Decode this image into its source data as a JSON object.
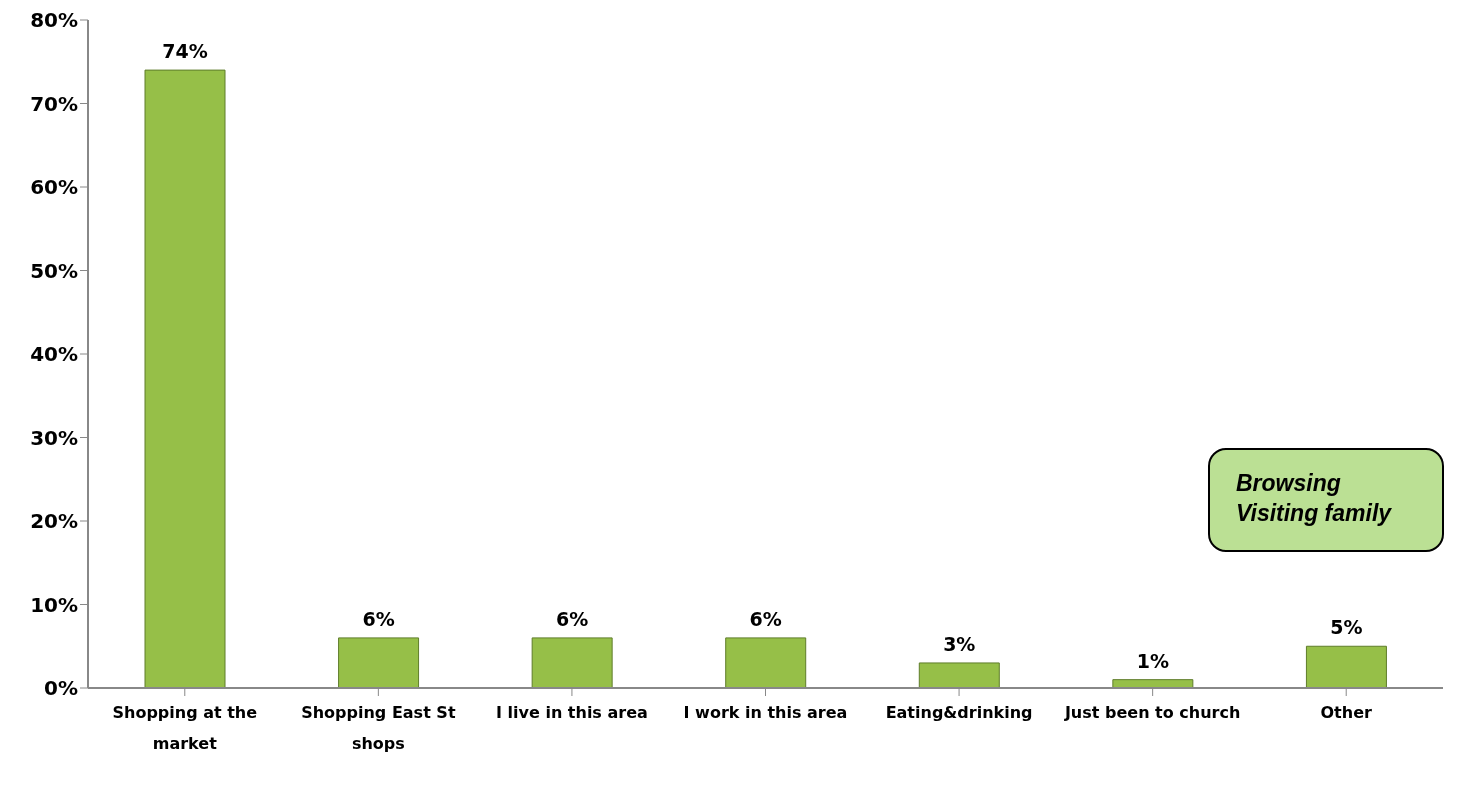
{
  "chart_data": {
    "type": "bar",
    "categories": [
      "Shopping at the market",
      "Shopping East St shops",
      "I live in this area",
      "I work in this area",
      "Eating&drinking",
      "Just been to church",
      "Other"
    ],
    "values": [
      74,
      6,
      6,
      6,
      3,
      1,
      5
    ],
    "value_labels": [
      "74%",
      "6%",
      "6%",
      "6%",
      "3%",
      "1%",
      "5%"
    ],
    "color": "#96bf48",
    "ylim": [
      0,
      80
    ],
    "yticks": [
      {
        "value": 0,
        "label": "0%"
      },
      {
        "value": 10,
        "label": "10%"
      },
      {
        "value": 20,
        "label": "20%"
      },
      {
        "value": 30,
        "label": "30%"
      },
      {
        "value": 40,
        "label": "40%"
      },
      {
        "value": 50,
        "label": "50%"
      },
      {
        "value": 60,
        "label": "60%"
      },
      {
        "value": 70,
        "label": "70%"
      },
      {
        "value": 80,
        "label": "80%"
      }
    ],
    "grid": false,
    "annotations": [
      "Browsing",
      "Visiting family"
    ]
  }
}
